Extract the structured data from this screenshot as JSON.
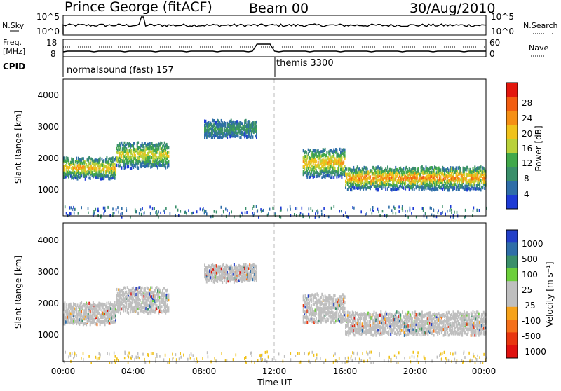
{
  "header": {
    "station": "Prince George (fitACF)",
    "beam": "Beam 00",
    "date": "30/Aug/2010"
  },
  "nsky_panel": {
    "left_label": "N.Sky",
    "right_label": "N.Search",
    "left_ticks": [
      "10^5",
      "10^0"
    ],
    "right_ticks": [
      "10^5",
      "10^0"
    ]
  },
  "freq_panel": {
    "left_label_1": "Freq.",
    "left_label_2": "[MHz]",
    "left_ticks": [
      "18",
      "8"
    ],
    "right_ticks": [
      "60",
      "0"
    ],
    "right_label": "Nave"
  },
  "cpid": {
    "label": "CPID",
    "mode_1": "normalsound (fast) 157",
    "mode_2": "themis 3300"
  },
  "colors": {
    "power_scale": [
      "#1e3bd6",
      "#2f6ea8",
      "#3a8f6a",
      "#41a84a",
      "#b9d13a",
      "#f0c21b",
      "#f58f14",
      "#f25d10",
      "#e3170d"
    ],
    "velocity_scale": [
      "#233fc8",
      "#2f6ea8",
      "#3a8f6a",
      "#6ccf3b",
      "#bfbfbf",
      "#bfbfbf",
      "#f6a21a",
      "#f5701a",
      "#e8360f",
      "#e0110f"
    ],
    "gridline": "#bbbbbb"
  },
  "chart_data": [
    {
      "type": "heatmap",
      "panel": "power",
      "ylabel": "Slant Range [km]",
      "xlabel": "Time UT",
      "xlim": [
        "00:00",
        "24:00"
      ],
      "x_ticks": [
        "00:00",
        "04:00",
        "08:00",
        "12:00",
        "16:00",
        "20:00",
        "00:00"
      ],
      "ylim": [
        150,
        4600
      ],
      "y_ticks": [
        "1000",
        "2000",
        "3000",
        "4000"
      ],
      "colorbar": {
        "label": "Power [dB]",
        "range": [
          0,
          32
        ],
        "ticks": [
          "28",
          "24",
          "20",
          "16",
          "12",
          "8",
          "4"
        ]
      },
      "bands": [
        {
          "t_start": 0.0,
          "t_end": 3.0,
          "r_low": 1450,
          "r_high": 2100,
          "strength": 18
        },
        {
          "t_start": 3.0,
          "t_end": 6.0,
          "r_low": 1800,
          "r_high": 2600,
          "strength": 16
        },
        {
          "t_start": 8.0,
          "t_end": 11.0,
          "r_low": 2800,
          "r_high": 3300,
          "strength": 6
        },
        {
          "t_start": 13.6,
          "t_end": 16.0,
          "r_low": 1500,
          "r_high": 2400,
          "strength": 20
        },
        {
          "t_start": 16.0,
          "t_end": 24.0,
          "r_low": 1100,
          "r_high": 1800,
          "strength": 22
        }
      ]
    },
    {
      "type": "heatmap",
      "panel": "velocity",
      "ylabel": "Slant Range [km]",
      "xlabel": "Time UT",
      "xlim": [
        "00:00",
        "24:00"
      ],
      "x_ticks": [
        "00:00",
        "04:00",
        "08:00",
        "12:00",
        "16:00",
        "20:00",
        "00:00"
      ],
      "ylim": [
        150,
        4600
      ],
      "y_ticks": [
        "1000",
        "2000",
        "3000",
        "4000"
      ],
      "colorbar": {
        "label": "Velocity [m s⁻¹]",
        "ticks": [
          "1000",
          "500",
          "100",
          "25",
          "-25",
          "-100",
          "-500",
          "-1000"
        ]
      },
      "bands": [
        {
          "t_start": 0.0,
          "t_end": 3.0,
          "r_low": 1450,
          "r_high": 2100,
          "velocity": 0
        },
        {
          "t_start": 3.0,
          "t_end": 6.0,
          "r_low": 1800,
          "r_high": 2600,
          "velocity": 0
        },
        {
          "t_start": 8.0,
          "t_end": 11.0,
          "r_low": 2800,
          "r_high": 3300,
          "velocity": 0
        },
        {
          "t_start": 13.6,
          "t_end": 16.0,
          "r_low": 1500,
          "r_high": 2400,
          "velocity": 0
        },
        {
          "t_start": 16.0,
          "t_end": 24.0,
          "r_low": 1100,
          "r_high": 1800,
          "velocity": 0
        }
      ]
    }
  ]
}
